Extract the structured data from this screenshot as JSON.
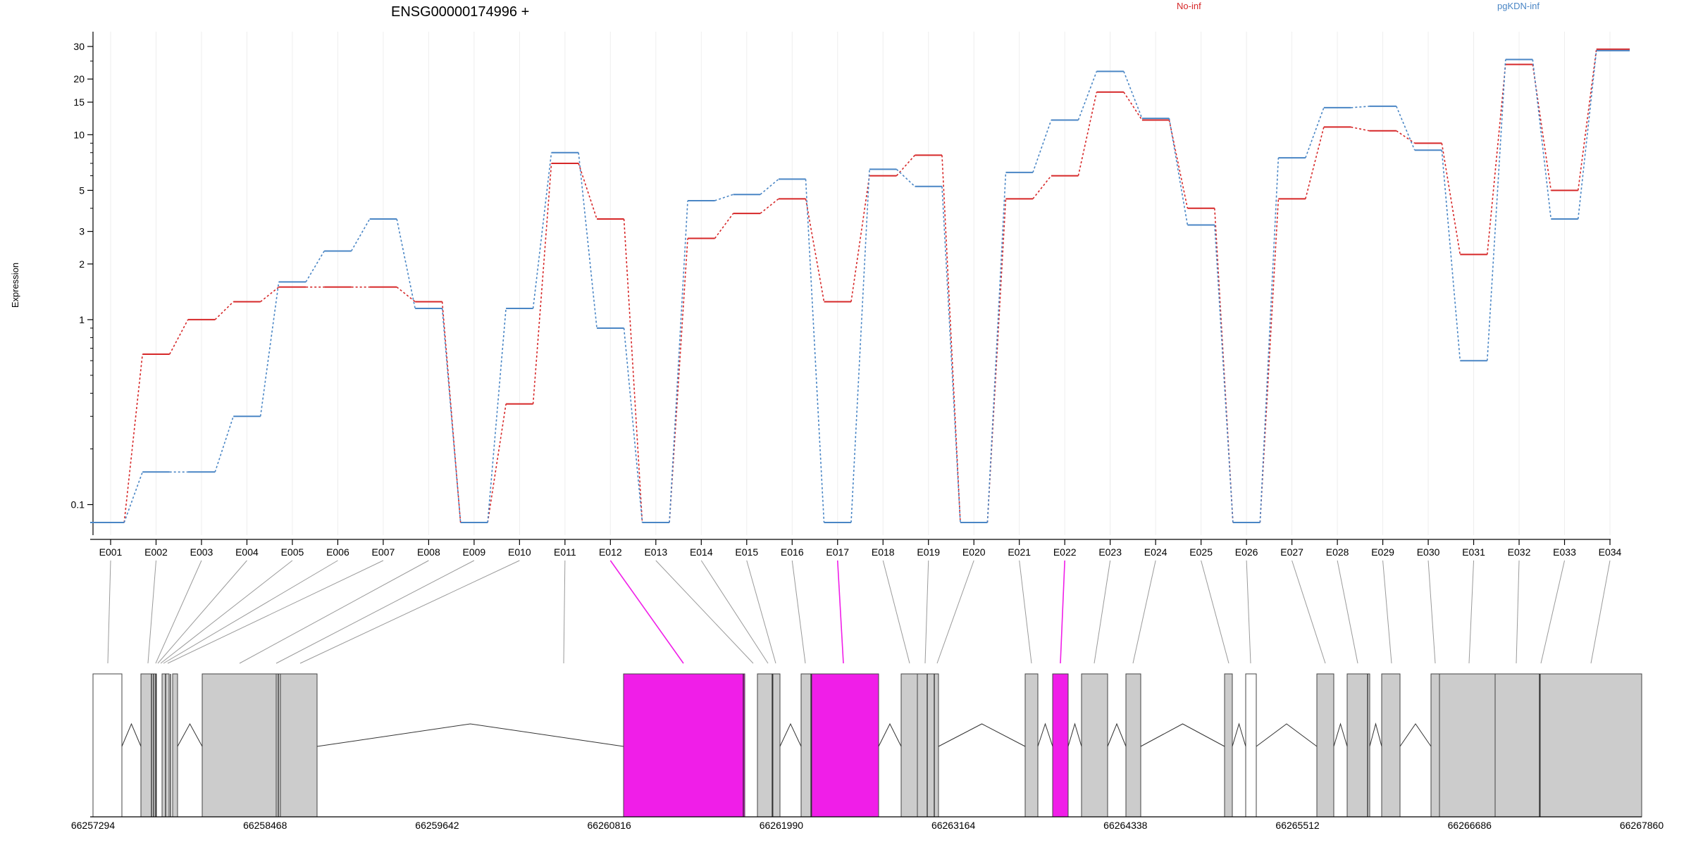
{
  "chart_data": {
    "type": "line",
    "title": "ENSG00000174996 +",
    "ylabel": "Expression",
    "yscale": "log",
    "ylim": [
      0.08,
      32
    ],
    "yticks": [
      {
        "v": 0.1,
        "label": "0.1"
      },
      {
        "v": 1,
        "label": "1"
      },
      {
        "v": 2,
        "label": "2"
      },
      {
        "v": 3,
        "label": "3"
      },
      {
        "v": 5,
        "label": "5"
      },
      {
        "v": 10,
        "label": "10"
      },
      {
        "v": 15,
        "label": "15"
      },
      {
        "v": 20,
        "label": "20"
      },
      {
        "v": 30,
        "label": "30"
      }
    ],
    "grid": true,
    "legend_position": "top",
    "categories": [
      "E001",
      "E002",
      "E003",
      "E004",
      "E005",
      "E006",
      "E007",
      "E008",
      "E009",
      "E010",
      "E011",
      "E012",
      "E013",
      "E014",
      "E015",
      "E016",
      "E017",
      "E018",
      "E019",
      "E020",
      "E021",
      "E022",
      "E023",
      "E024",
      "E025",
      "E026",
      "E027",
      "E028",
      "E029",
      "E030",
      "E031",
      "E032",
      "E033",
      "E034"
    ],
    "series": [
      {
        "name": "No-inf",
        "color": "#d62728",
        "values": [
          0.08,
          0.65,
          1.0,
          1.25,
          1.5,
          1.5,
          1.5,
          1.25,
          0.08,
          0.35,
          7.0,
          3.5,
          0.08,
          2.75,
          3.75,
          4.5,
          1.25,
          6.0,
          7.75,
          0.08,
          4.5,
          6.0,
          17.0,
          12.0,
          4.0,
          0.08,
          4.5,
          11.0,
          10.5,
          9.0,
          2.25,
          24.0,
          5.0,
          29.0
        ]
      },
      {
        "name": "pgKDN-inf",
        "color": "#4a86c5",
        "values": [
          0.08,
          0.15,
          0.15,
          0.3,
          1.6,
          2.35,
          3.5,
          1.15,
          0.08,
          1.15,
          8.0,
          0.9,
          0.08,
          4.4,
          4.75,
          5.75,
          0.08,
          6.5,
          5.25,
          0.08,
          6.25,
          12.0,
          22.0,
          12.25,
          3.25,
          0.08,
          7.5,
          14.0,
          14.25,
          8.25,
          0.6,
          25.5,
          3.5,
          28.5
        ]
      }
    ],
    "gene_model": {
      "coordinate_labels": [
        "66257294",
        "66258468",
        "66259642",
        "66260816",
        "66261990",
        "66263164",
        "66264338",
        "66265512",
        "66266686",
        "66267860"
      ],
      "highlighted_exons": [
        "E012",
        "E017",
        "E022"
      ],
      "highlight_color": "#f01ee8",
      "exon_fill": "#cccccc"
    }
  }
}
